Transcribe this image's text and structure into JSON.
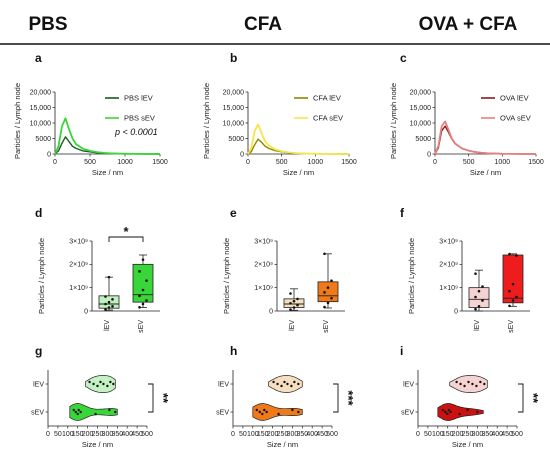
{
  "columns": [
    "PBS",
    "CFA",
    "OVA + CFA"
  ],
  "chart_data": [
    {
      "panel": "a",
      "type": "line",
      "xlabel": "Size / nm",
      "ylabel": "Particles / Lymph node",
      "xlim": [
        0,
        1500
      ],
      "ylim": [
        0,
        20000
      ],
      "xticks": [
        "0",
        "500",
        "1000",
        "1500"
      ],
      "yticks": [
        "0",
        "5000",
        "10,000",
        "15,000",
        "20,000"
      ],
      "annotation": "p < 0.0001",
      "series": [
        {
          "name": "PBS lEV",
          "color": "#1b5e20",
          "x": [
            0,
            50,
            100,
            150,
            200,
            250,
            300,
            400,
            500,
            600,
            700,
            800,
            1000,
            1200,
            1500
          ],
          "y": [
            0,
            1000,
            3500,
            5500,
            4000,
            2500,
            1800,
            1000,
            700,
            400,
            250,
            150,
            60,
            20,
            0
          ]
        },
        {
          "name": "PBS sEV",
          "color": "#39d639",
          "x": [
            0,
            50,
            100,
            150,
            200,
            250,
            300,
            400,
            500,
            600,
            700,
            800,
            1000,
            1200,
            1500
          ],
          "y": [
            0,
            2500,
            9000,
            11500,
            8000,
            5000,
            3200,
            1700,
            1000,
            600,
            350,
            200,
            80,
            30,
            0
          ]
        }
      ]
    },
    {
      "panel": "b",
      "type": "line",
      "xlabel": "Size / nm",
      "ylabel": "Particles / Lymph node",
      "xlim": [
        0,
        1500
      ],
      "ylim": [
        0,
        20000
      ],
      "xticks": [
        "0",
        "500",
        "1000",
        "1500"
      ],
      "yticks": [
        "0",
        "5000",
        "10,000",
        "15,000",
        "20,000"
      ],
      "series": [
        {
          "name": "CFA lEV",
          "color": "#8a8a00",
          "x": [
            0,
            50,
            100,
            150,
            200,
            250,
            300,
            400,
            500,
            600,
            700,
            800,
            1000,
            1200,
            1500
          ],
          "y": [
            0,
            800,
            3000,
            4800,
            3800,
            2600,
            1900,
            1100,
            700,
            450,
            280,
            170,
            70,
            20,
            0
          ]
        },
        {
          "name": "CFA sEV",
          "color": "#f5e44a",
          "x": [
            0,
            50,
            100,
            150,
            200,
            250,
            300,
            400,
            500,
            600,
            700,
            800,
            1000,
            1200,
            1500
          ],
          "y": [
            0,
            2000,
            7500,
            9500,
            6800,
            4300,
            2900,
            1500,
            900,
            500,
            300,
            170,
            70,
            20,
            0
          ]
        }
      ]
    },
    {
      "panel": "c",
      "type": "line",
      "xlabel": "Size / nm",
      "ylabel": "Particles / Lymph node",
      "xlim": [
        0,
        1500
      ],
      "ylim": [
        0,
        20000
      ],
      "xticks": [
        "0",
        "500",
        "1000",
        "1500"
      ],
      "yticks": [
        "0",
        "5000",
        "10,000",
        "15,000",
        "20,000"
      ],
      "series": [
        {
          "name": "OVA lEV",
          "color": "#8b1a1a",
          "x": [
            0,
            50,
            100,
            150,
            200,
            250,
            300,
            400,
            500,
            600,
            700,
            800,
            1000,
            1200,
            1500
          ],
          "y": [
            0,
            2000,
            7500,
            9000,
            7000,
            4800,
            3300,
            1800,
            1100,
            650,
            380,
            220,
            90,
            30,
            0
          ]
        },
        {
          "name": "OVA sEV",
          "color": "#e58080",
          "x": [
            0,
            50,
            100,
            150,
            200,
            250,
            300,
            400,
            500,
            600,
            700,
            800,
            1000,
            1200,
            1500
          ],
          "y": [
            0,
            2600,
            9000,
            10500,
            7800,
            5000,
            3400,
            1800,
            1050,
            600,
            350,
            200,
            80,
            25,
            0
          ]
        }
      ]
    },
    {
      "panel": "d",
      "type": "box",
      "ylabel": "Particles / Lymph node",
      "ylim": [
        0,
        3000000000
      ],
      "yticks": [
        "0",
        "1×10⁹",
        "2×10⁹",
        "3×10⁹"
      ],
      "categories": [
        "lEV",
        "sEV"
      ],
      "significance": "*",
      "boxes": [
        {
          "name": "lEV",
          "color": "#bff0bf",
          "min": 40000000,
          "q1": 120000000,
          "median": 300000000,
          "q3": 650000000,
          "max": 1450000000,
          "points": [
            60000000,
            150000000,
            200000000,
            300000000,
            380000000,
            500000000,
            620000000,
            1450000000
          ]
        },
        {
          "name": "sEV",
          "color": "#39d639",
          "min": 150000000,
          "q1": 380000000,
          "median": 700000000,
          "q3": 2000000000,
          "max": 2400000000,
          "points": [
            160000000,
            300000000,
            450000000,
            650000000,
            900000000,
            1300000000,
            1700000000,
            2200000000
          ]
        }
      ]
    },
    {
      "panel": "e",
      "type": "box",
      "ylabel": "Particles / Lymph node",
      "ylim": [
        0,
        3000000000
      ],
      "yticks": [
        "0",
        "1×10⁹",
        "2×10⁹",
        "3×10⁹"
      ],
      "categories": [
        "lEV",
        "sEV"
      ],
      "boxes": [
        {
          "name": "lEV",
          "color": "#f6dec0",
          "min": 30000000,
          "q1": 150000000,
          "median": 300000000,
          "q3": 520000000,
          "max": 950000000,
          "points": [
            60000000,
            150000000,
            250000000,
            330000000,
            420000000,
            520000000,
            750000000
          ]
        },
        {
          "name": "sEV",
          "color": "#f07a1a",
          "min": 130000000,
          "q1": 400000000,
          "median": 650000000,
          "q3": 1250000000,
          "max": 2450000000,
          "points": [
            170000000,
            350000000,
            550000000,
            800000000,
            1000000000,
            1300000000,
            2450000000
          ]
        }
      ]
    },
    {
      "panel": "f",
      "type": "box",
      "ylabel": "Particles / Lymph node",
      "ylim": [
        0,
        3000000000
      ],
      "yticks": [
        "0",
        "1×10⁹",
        "2×10⁹",
        "3×10⁹"
      ],
      "categories": [
        "lEV",
        "sEV"
      ],
      "boxes": [
        {
          "name": "lEV",
          "color": "#f6d3d3",
          "min": 0,
          "q1": 150000000,
          "median": 500000000,
          "q3": 1000000000,
          "max": 1750000000,
          "points": [
            80000000,
            200000000,
            450000000,
            600000000,
            850000000,
            1050000000,
            1600000000
          ]
        },
        {
          "name": "sEV",
          "color": "#ee1c1c",
          "min": 200000000,
          "q1": 350000000,
          "median": 550000000,
          "q3": 2400000000,
          "max": 2450000000,
          "points": [
            220000000,
            450000000,
            600000000,
            850000000,
            1150000000,
            2380000000,
            2440000000
          ]
        }
      ]
    },
    {
      "panel": "g",
      "type": "violin",
      "xlabel": "Size / nm",
      "xlim": [
        0,
        500
      ],
      "xticks": [
        "0",
        "50",
        "100",
        "150",
        "200",
        "250",
        "300",
        "350",
        "400",
        "450",
        "500"
      ],
      "categories": [
        "lEV",
        "sEV"
      ],
      "significance": "**",
      "violins": [
        {
          "name": "lEV",
          "color": "#c4f2c4",
          "min": 190,
          "max": 340,
          "points": [
            210,
            230,
            250,
            265,
            280,
            300,
            315,
            330
          ]
        },
        {
          "name": "sEV",
          "color": "#39d639",
          "min": 110,
          "max": 350,
          "points": [
            130,
            140,
            150,
            155,
            165,
            240,
            310,
            340
          ]
        }
      ]
    },
    {
      "panel": "h",
      "type": "violin",
      "xlabel": "Size / nm",
      "xlim": [
        0,
        500
      ],
      "xticks": [
        "0",
        "50",
        "100",
        "150",
        "200",
        "250",
        "300",
        "350",
        "400",
        "450",
        "500"
      ],
      "categories": [
        "lEV",
        "sEV"
      ],
      "significance": "***",
      "violins": [
        {
          "name": "lEV",
          "color": "#f6dec0",
          "min": 180,
          "max": 350,
          "points": [
            205,
            225,
            245,
            260,
            275,
            295,
            310,
            330
          ]
        },
        {
          "name": "sEV",
          "color": "#f07a1a",
          "min": 100,
          "max": 350,
          "points": [
            120,
            135,
            148,
            158,
            170,
            230,
            300,
            330
          ]
        }
      ]
    },
    {
      "panel": "i",
      "type": "violin",
      "xlabel": "Size / nm",
      "xlim": [
        0,
        500
      ],
      "xticks": [
        "0",
        "50",
        "100",
        "150",
        "200",
        "250",
        "300",
        "350",
        "400",
        "450",
        "500"
      ],
      "categories": [
        "lEV",
        "sEV"
      ],
      "significance": "**",
      "violins": [
        {
          "name": "lEV",
          "color": "#f6d3d3",
          "min": 160,
          "max": 350,
          "points": [
            195,
            215,
            235,
            255,
            275,
            295,
            315,
            335
          ]
        },
        {
          "name": "sEV",
          "color": "#cc1111",
          "min": 100,
          "max": 330,
          "points": [
            125,
            138,
            148,
            156,
            165,
            210,
            250,
            300
          ]
        }
      ]
    }
  ]
}
